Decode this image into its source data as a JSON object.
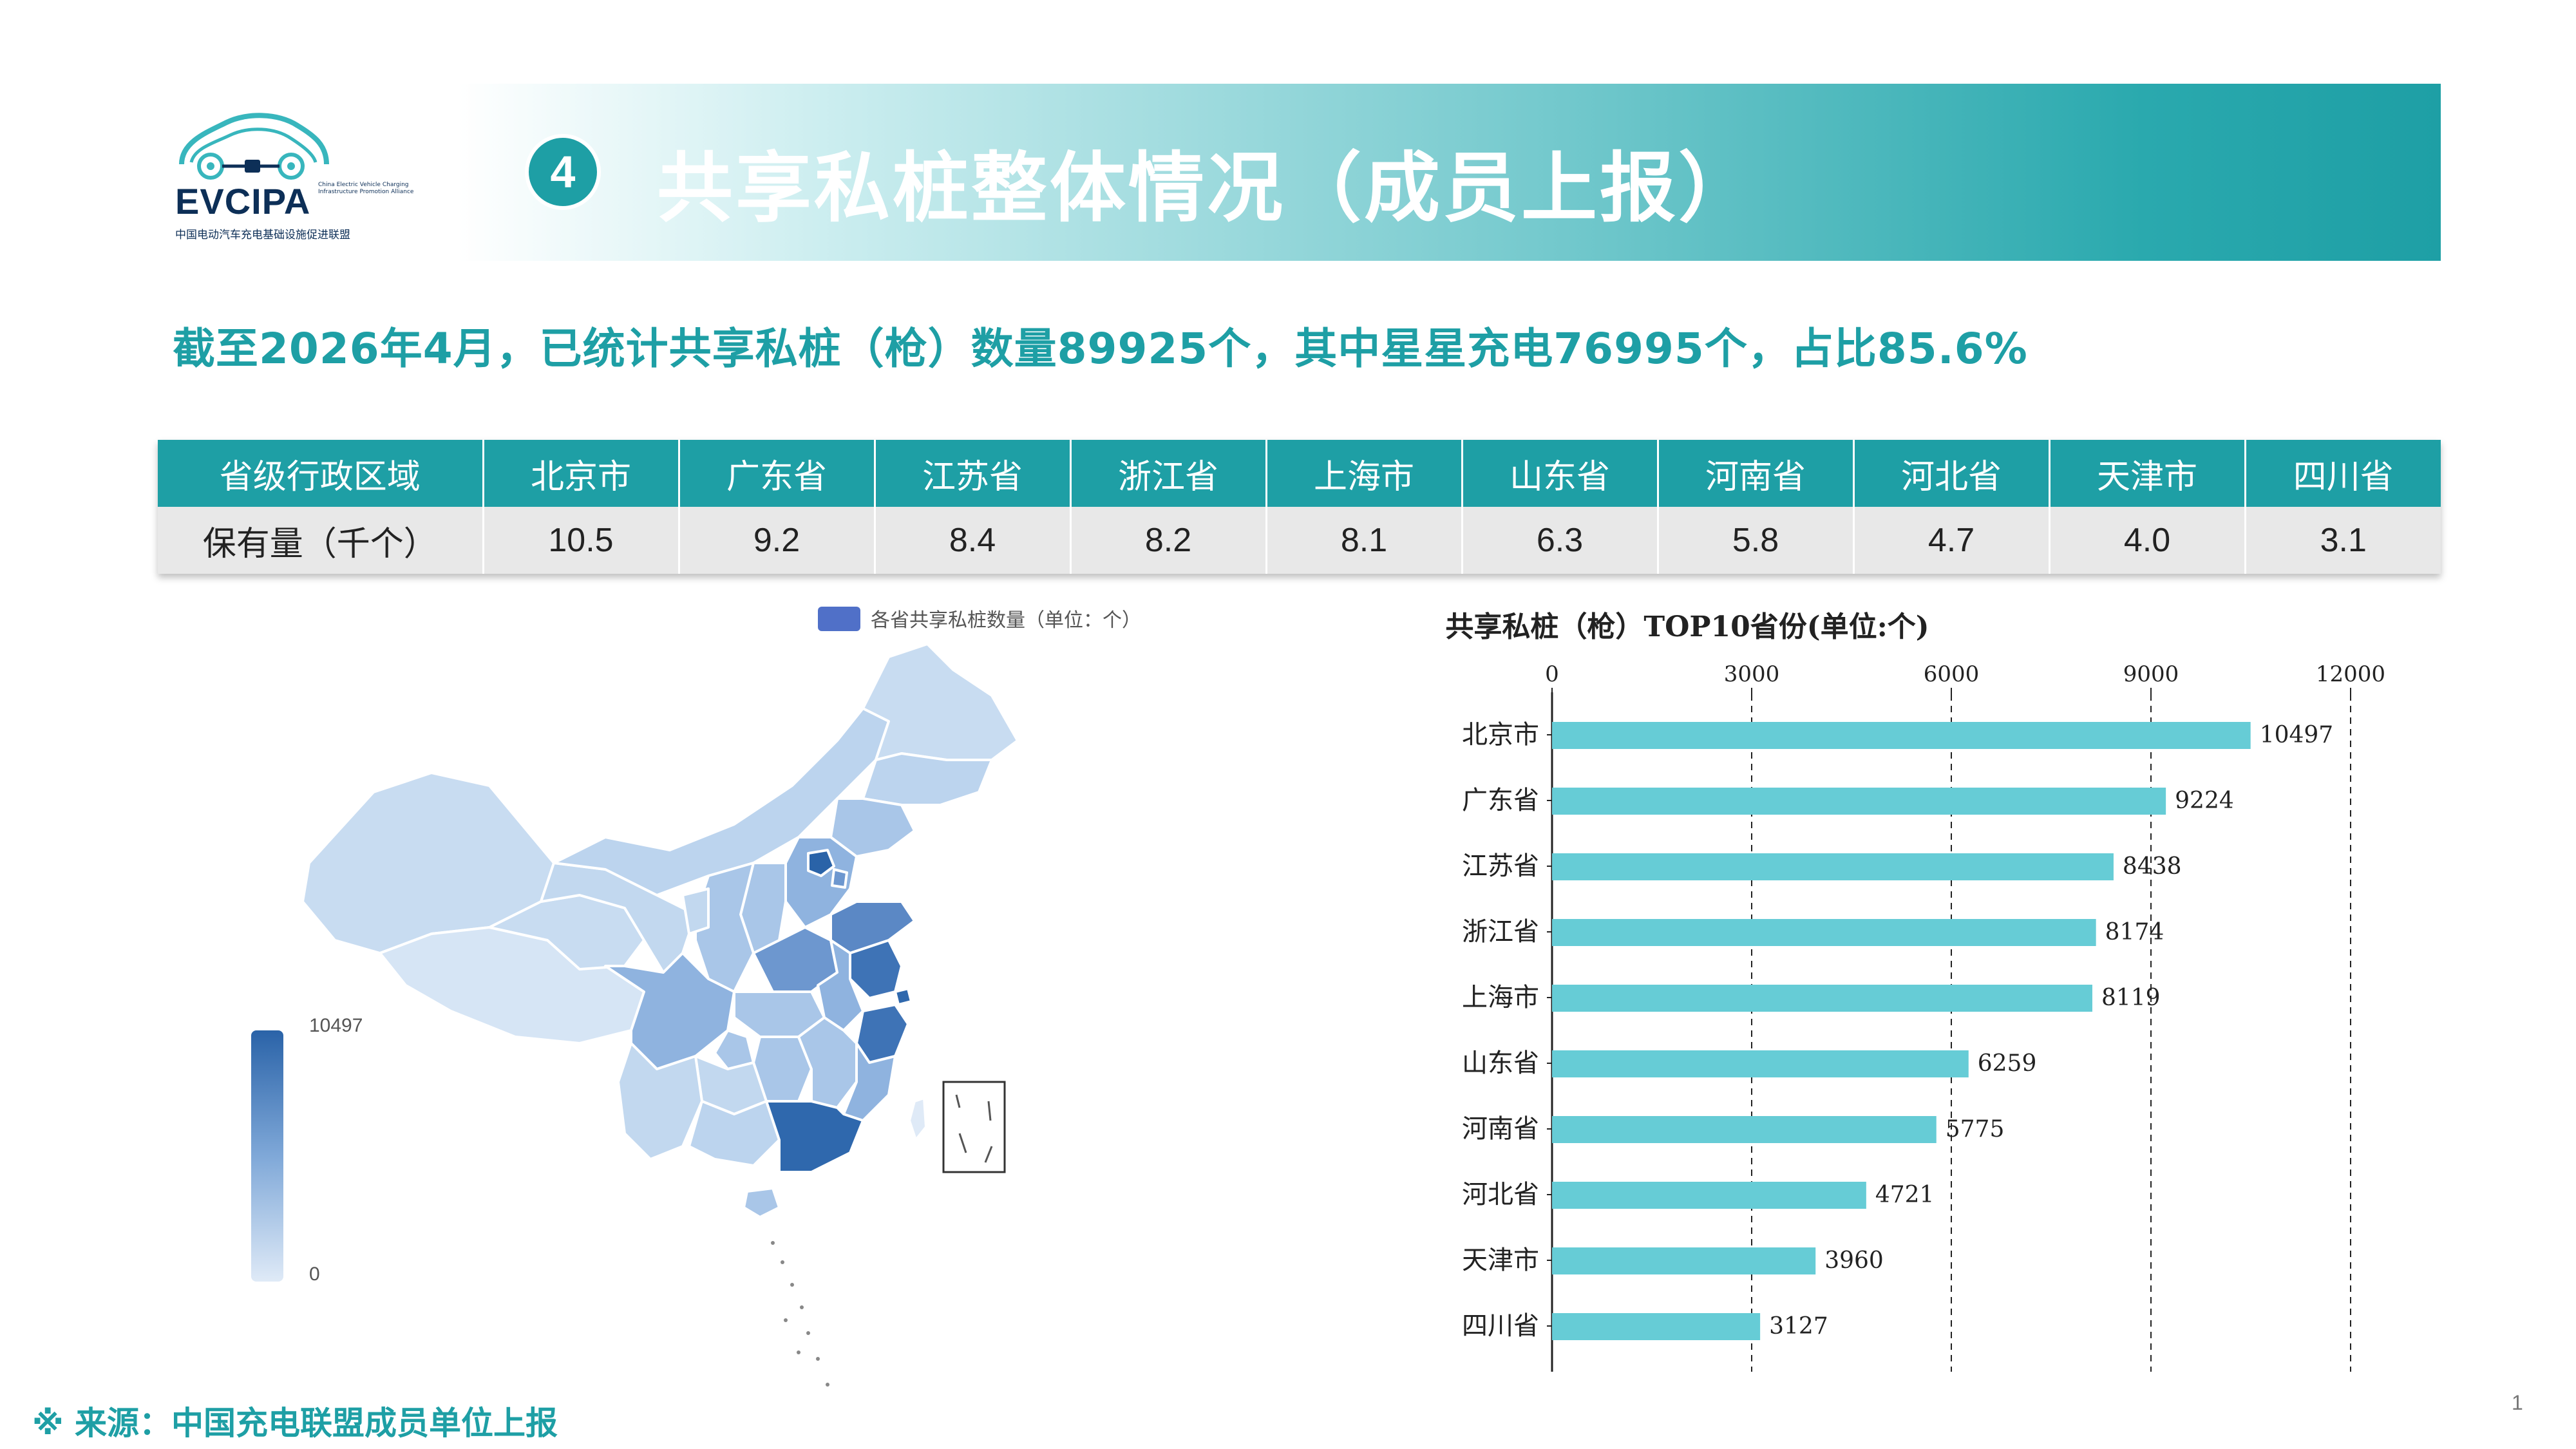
{
  "header": {
    "logo_text": "EVCIPA",
    "logo_sub_en": "China Electric Vehicle Charging Infrastructure Promotion Alliance",
    "logo_sub_cn": "中国电动汽车充电基础设施促进联盟",
    "section_number": "4",
    "title": "共享私桩整体情况（成员上报）"
  },
  "headline": "截至2026年4月，已统计共享私桩（枪）数量89925个，其中星星充电76995个，占比85.6%",
  "table": {
    "header": [
      "省级行政区域",
      "北京市",
      "广东省",
      "江苏省",
      "浙江省",
      "上海市",
      "山东省",
      "河南省",
      "河北省",
      "天津市",
      "四川省"
    ],
    "row": [
      "保有量（千个）",
      "10.5",
      "9.2",
      "8.4",
      "8.2",
      "8.1",
      "6.3",
      "5.8",
      "4.7",
      "4.0",
      "3.1"
    ]
  },
  "map": {
    "legend_label": "各省共享私桩数量（单位：个）",
    "scale_max": "10497",
    "scale_min": "0",
    "colors": {
      "low": "#dfeaf7",
      "mid": "#7fa8d8",
      "high": "#2a63a8"
    }
  },
  "chart_data": {
    "type": "bar",
    "orientation": "horizontal",
    "title": "共享私桩（枪）TOP10省份(单位:个)",
    "categories": [
      "北京市",
      "广东省",
      "江苏省",
      "浙江省",
      "上海市",
      "山东省",
      "河南省",
      "河北省",
      "天津市",
      "四川省"
    ],
    "values": [
      10497,
      9224,
      8438,
      8174,
      8119,
      6259,
      5775,
      4721,
      3960,
      3127
    ],
    "xlim": [
      0,
      12000
    ],
    "xticks": [
      0,
      3000,
      6000,
      9000,
      12000
    ],
    "grid": "dashed vertical",
    "bar_color": "#66ccd6"
  },
  "footer": {
    "source": "※ 来源：中国充电联盟成员单位上报",
    "page": "1"
  }
}
